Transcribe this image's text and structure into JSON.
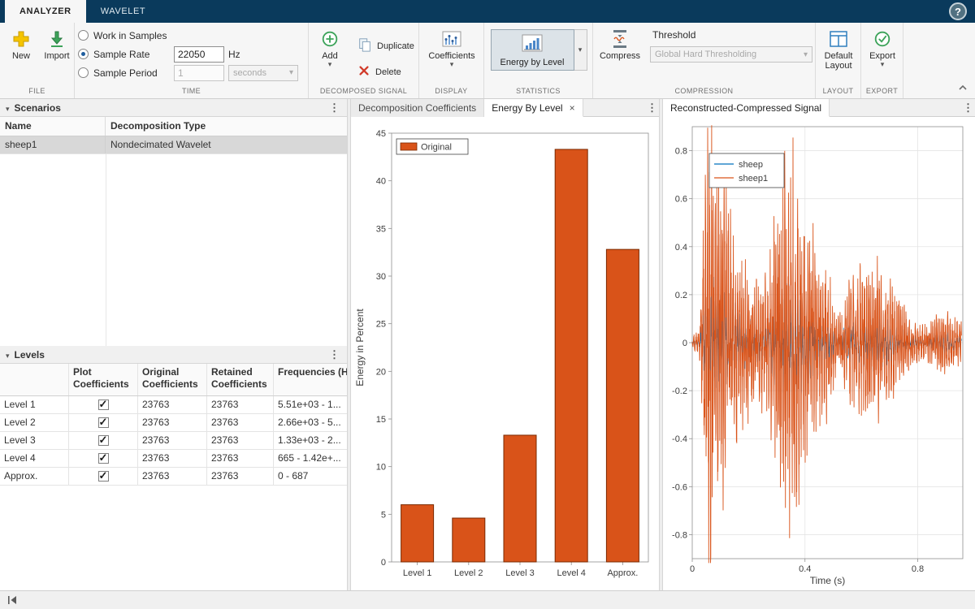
{
  "titlebar": {
    "tabs": [
      {
        "label": "ANALYZER",
        "active": true
      },
      {
        "label": "WAVELET",
        "active": false
      }
    ],
    "help": "?"
  },
  "ribbon": {
    "file": {
      "section": "FILE",
      "new": "New",
      "import": "Import"
    },
    "time": {
      "section": "TIME",
      "radios": [
        {
          "label": "Work in Samples",
          "selected": false
        },
        {
          "label": "Sample Rate",
          "selected": true
        },
        {
          "label": "Sample Period",
          "selected": false
        }
      ],
      "sample_rate_value": "22050",
      "sample_rate_unit": "Hz",
      "sample_period_value": "1",
      "sample_period_unit": "seconds"
    },
    "decomposed_signal": {
      "section": "DECOMPOSED SIGNAL",
      "add": "Add",
      "duplicate": "Duplicate",
      "delete": "Delete"
    },
    "display": {
      "section": "DISPLAY",
      "coefficients": "Coefficients"
    },
    "statistics": {
      "section": "STATISTICS",
      "energy_by_level": "Energy by Level"
    },
    "compression": {
      "section": "COMPRESSION",
      "compress": "Compress",
      "threshold_label": "Threshold",
      "threshold_value": "Global Hard Thresholding"
    },
    "layout": {
      "section": "LAYOUT",
      "default_layout": "Default Layout"
    },
    "export": {
      "section": "EXPORT",
      "export": "Export"
    }
  },
  "scenarios": {
    "title": "Scenarios",
    "columns": [
      "Name",
      "Decomposition Type"
    ],
    "rows": [
      {
        "name": "sheep1",
        "type": "Nondecimated Wavelet",
        "selected": true
      }
    ]
  },
  "levels": {
    "title": "Levels",
    "columns": [
      "",
      "Plot Coefficients",
      "Original Coefficients",
      "Retained Coefficients",
      "Frequencies (Hz)"
    ],
    "rows": [
      {
        "name": "Level 1",
        "plot": true,
        "original": "23763",
        "retained": "23763",
        "frequencies": "5.51e+03 - 1..."
      },
      {
        "name": "Level 2",
        "plot": true,
        "original": "23763",
        "retained": "23763",
        "frequencies": "2.66e+03 - 5..."
      },
      {
        "name": "Level 3",
        "plot": true,
        "original": "23763",
        "retained": "23763",
        "frequencies": "1.33e+03 - 2..."
      },
      {
        "name": "Level 4",
        "plot": true,
        "original": "23763",
        "retained": "23763",
        "frequencies": "665 - 1.42e+..."
      },
      {
        "name": "Approx.",
        "plot": true,
        "original": "23763",
        "retained": "23763",
        "frequencies": "0 - 687"
      }
    ]
  },
  "center_panel": {
    "tabs": [
      {
        "label": "Decomposition Coefficients",
        "active": false,
        "closable": false
      },
      {
        "label": "Energy By Level",
        "active": true,
        "closable": true
      }
    ]
  },
  "right_panel": {
    "tabs": [
      {
        "label": "Reconstructed-Compressed Signal",
        "active": true,
        "closable": false
      }
    ]
  },
  "colors": {
    "titlebar_navy": "#0a3a5c",
    "matlab_orange": "#d95319",
    "matlab_blue": "#0072bd",
    "selection_gray": "#d8d8d8"
  },
  "chart_data": [
    {
      "type": "bar",
      "categories": [
        "Level 1",
        "Level 2",
        "Level 3",
        "Level 4",
        "Approx."
      ],
      "series": [
        {
          "name": "Original",
          "values": [
            6.0,
            4.6,
            13.3,
            43.3,
            32.8
          ]
        }
      ],
      "title": "",
      "xlabel": "",
      "ylabel": "Energy in Percent",
      "ylim": [
        0,
        45
      ],
      "yticks": [
        0,
        5,
        10,
        15,
        20,
        25,
        30,
        35,
        40,
        45
      ],
      "grid": false,
      "legend": {
        "position": "top-left",
        "entries": [
          "Original"
        ]
      },
      "bar_color": "#d95319",
      "bar_edge_color": "#7a2900"
    },
    {
      "type": "line",
      "xlabel": "Time (s)",
      "ylabel": "",
      "xlim": [
        0,
        0.96
      ],
      "ylim": [
        -0.9,
        0.9
      ],
      "xticks": [
        0,
        0.4,
        0.8
      ],
      "yticks": [
        -0.8,
        -0.6,
        -0.4,
        -0.2,
        0,
        0.2,
        0.4,
        0.6,
        0.8
      ],
      "grid": true,
      "legend": {
        "position": "top-left",
        "entries": [
          "sheep",
          "sheep1"
        ]
      },
      "series": [
        {
          "name": "sheep",
          "color": "#0072bd",
          "line_width": 0.7,
          "relative_amplitude": 0.35
        },
        {
          "name": "sheep1",
          "color": "#d95319",
          "line_width": 0.9,
          "relative_amplitude": 1.0
        }
      ],
      "amplitude_envelope": [
        [
          0,
          0.02
        ],
        [
          0.025,
          0.06
        ],
        [
          0.04,
          0.5
        ],
        [
          0.055,
          0.82
        ],
        [
          0.07,
          0.88
        ],
        [
          0.085,
          0.65
        ],
        [
          0.11,
          0.6
        ],
        [
          0.14,
          0.48
        ],
        [
          0.17,
          0.32
        ],
        [
          0.2,
          0.3
        ],
        [
          0.235,
          0.22
        ],
        [
          0.27,
          0.33
        ],
        [
          0.3,
          0.52
        ],
        [
          0.33,
          0.68
        ],
        [
          0.36,
          0.74
        ],
        [
          0.39,
          0.6
        ],
        [
          0.42,
          0.5
        ],
        [
          0.45,
          0.3
        ],
        [
          0.475,
          0.34
        ],
        [
          0.5,
          0.18
        ],
        [
          0.52,
          0.1
        ],
        [
          0.545,
          0.2
        ],
        [
          0.57,
          0.26
        ],
        [
          0.6,
          0.3
        ],
        [
          0.63,
          0.26
        ],
        [
          0.655,
          0.32
        ],
        [
          0.68,
          0.24
        ],
        [
          0.7,
          0.3
        ],
        [
          0.72,
          0.2
        ],
        [
          0.75,
          0.15
        ],
        [
          0.78,
          0.09
        ],
        [
          0.82,
          0.07
        ],
        [
          0.86,
          0.1
        ],
        [
          0.9,
          0.12
        ],
        [
          0.93,
          0.09
        ],
        [
          0.955,
          0.08
        ]
      ]
    }
  ],
  "status_bar": {
    "collapse_icon": "collapse-panel-left"
  }
}
